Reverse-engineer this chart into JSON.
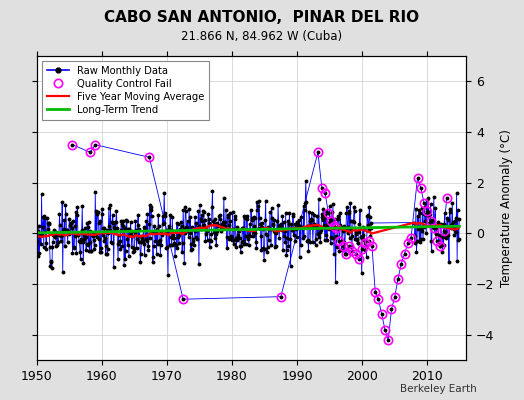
{
  "title": "CABO SAN ANTONIO,  PINAR DEL RIO",
  "subtitle": "21.866 N, 84.962 W (Cuba)",
  "ylabel": "Temperature Anomaly (°C)",
  "credit": "Berkeley Earth",
  "xlim": [
    1950,
    2016
  ],
  "ylim": [
    -5,
    7
  ],
  "yticks": [
    -4,
    -2,
    0,
    2,
    4,
    6
  ],
  "xticks": [
    1950,
    1960,
    1970,
    1980,
    1990,
    2000,
    2010
  ],
  "bg_color": "#e0e0e0",
  "plot_bg_color": "#ffffff",
  "raw_color": "#0000ff",
  "qc_color": "#ff00ff",
  "ma_color": "#ff0000",
  "trend_color": "#00bb00",
  "seed": 12,
  "start_year": 1950.0,
  "end_year": 2015.0,
  "trend_slope": 0.004,
  "trend_intercept": 0.02
}
